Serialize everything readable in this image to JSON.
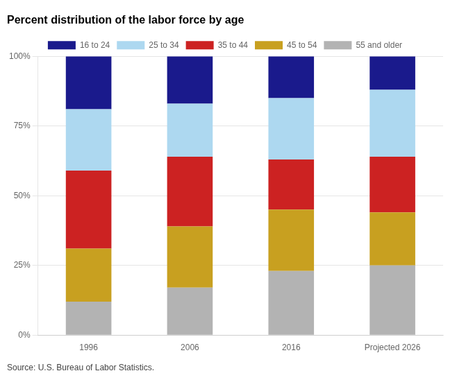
{
  "chart_data": {
    "type": "bar",
    "title": "Percent distribution of the labor force by age",
    "categories": [
      "1996",
      "2006",
      "2016",
      "Projected 2026"
    ],
    "series": [
      {
        "name": "55 and older",
        "color": "#b3b3b3",
        "values": [
          12,
          17,
          23,
          25
        ]
      },
      {
        "name": "45 to 54",
        "color": "#c8a020",
        "values": [
          19,
          22,
          22,
          19
        ]
      },
      {
        "name": "35 to 44",
        "color": "#cc2222",
        "values": [
          28,
          25,
          18,
          20
        ]
      },
      {
        "name": "25 to 34",
        "color": "#add8f0",
        "values": [
          22,
          19,
          22,
          24
        ]
      },
      {
        "name": "16 to 24",
        "color": "#1a1a8c",
        "values": [
          19,
          17,
          15,
          12
        ]
      }
    ],
    "stacked": true,
    "ylim": [
      0,
      100
    ],
    "yticks": [
      {
        "value": 0,
        "label": "0%"
      },
      {
        "value": 25,
        "label": "25%"
      },
      {
        "value": 50,
        "label": "50%"
      },
      {
        "value": 75,
        "label": "75%"
      },
      {
        "value": 100,
        "label": "100%"
      }
    ],
    "grid": "y",
    "legend": "top",
    "annotations": [
      "Source: U.S. Bureau of Labor Statistics."
    ]
  }
}
